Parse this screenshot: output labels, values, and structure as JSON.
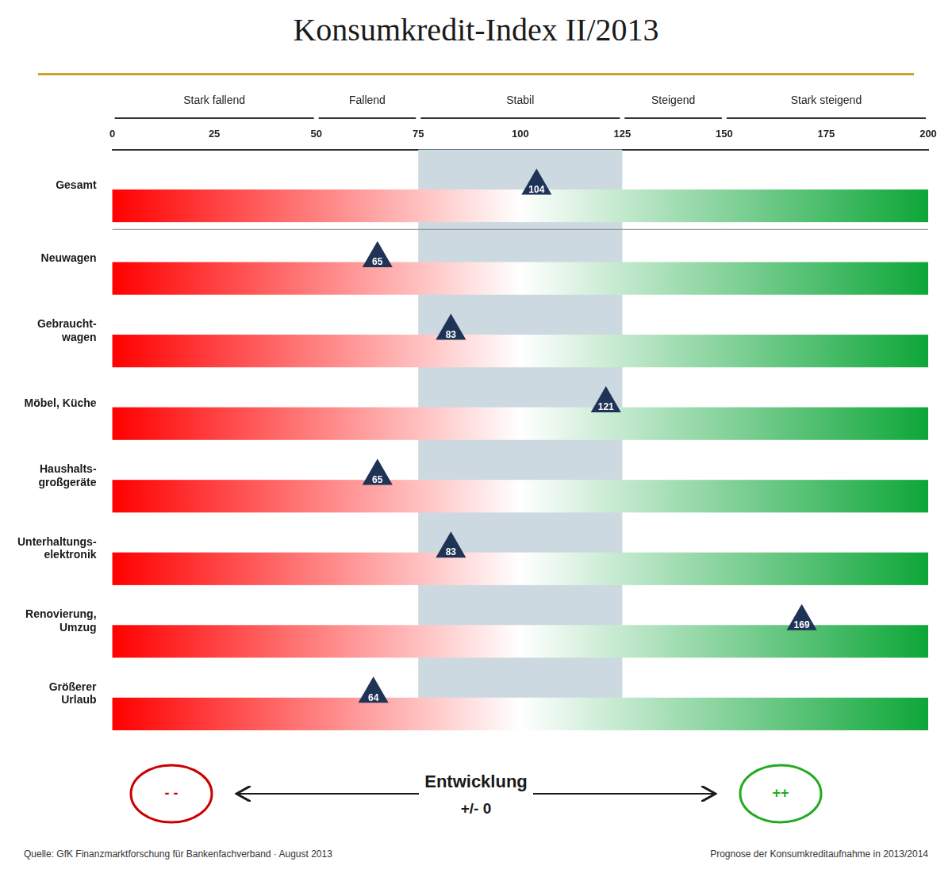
{
  "chart_data": {
    "type": "dot",
    "orientation": "horizontal",
    "title": "Konsumkredit-Index II/2013",
    "title_color": "#1a1a1a",
    "title_rule_color": "#C8A428",
    "categories": [
      "Gesamt",
      "Neuwagen",
      "Gebraucht-\nwagen",
      "Möbel, Küche",
      "Haushalts-\ngroßgeräte",
      "Unterhaltungs-\nelektronik",
      "Renovierung,\nUmzug",
      "Größerer\nUrlaub"
    ],
    "values": [
      104,
      65,
      83,
      121,
      65,
      83,
      169,
      64
    ],
    "marker": "triangle",
    "color": "#1f3356",
    "data_labels": true,
    "data_label_color": "#ffffff",
    "xlim": [
      0,
      200
    ],
    "xticks": [
      0,
      25,
      50,
      75,
      100,
      125,
      150,
      175,
      200
    ],
    "grid": false,
    "sections": [
      {
        "label": "Stark fallend",
        "from": 0,
        "to": 50
      },
      {
        "label": "Fallend",
        "from": 50,
        "to": 75
      },
      {
        "label": "Stabil",
        "from": 75,
        "to": 125
      },
      {
        "label": "Steigend",
        "from": 125,
        "to": 150
      },
      {
        "label": "Stark steigend",
        "from": 150,
        "to": 200
      }
    ],
    "shaded_range": [
      75,
      125
    ],
    "shaded_color": "#cdd9e0",
    "footer": {
      "center": "Entwicklung",
      "center_sub": "+/- 0",
      "left_mark": "- -",
      "left_color": "#cc0000",
      "right_mark": "++",
      "right_color": "#22aa22",
      "source": "Quelle: GfK Finanzmarktforschung für Bankenfachverband · August 2013",
      "note": "Prognose der Konsumkreditaufnahme in 2013/2014"
    }
  }
}
